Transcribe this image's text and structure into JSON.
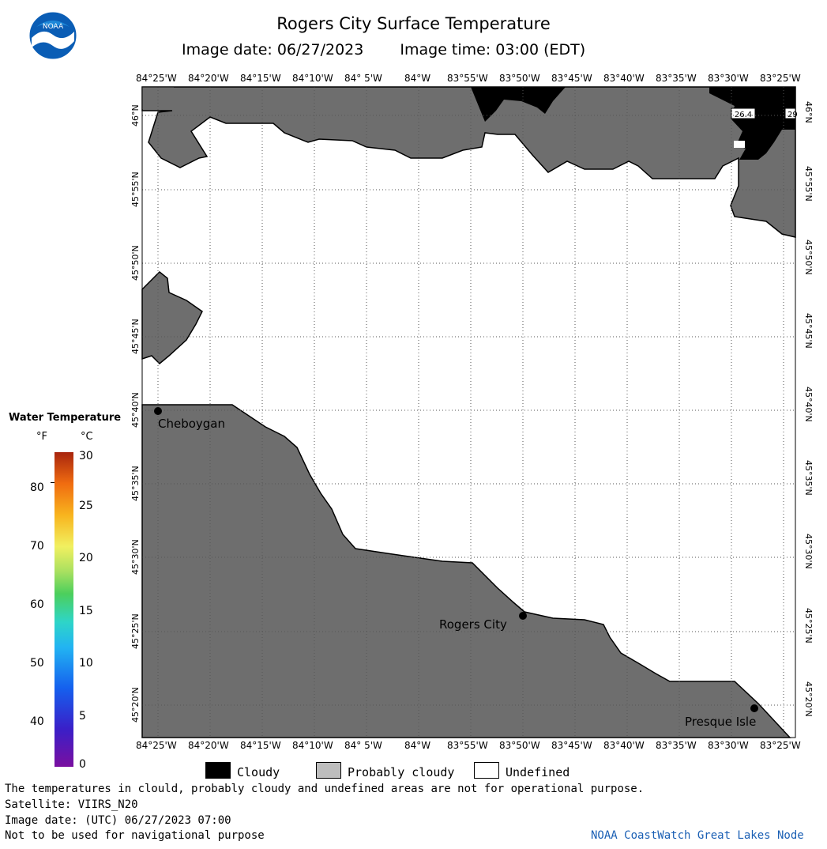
{
  "header": {
    "title": "Rogers City Surface Temperature",
    "image_date": "Image date: 06/27/2023",
    "image_time": "Image time: 03:00 (EDT)"
  },
  "map": {
    "lon_ticks": [
      "84°25'W",
      "84°20'W",
      "84°15'W",
      "84°10'W",
      "84° 5'W",
      "84°W",
      "83°55'W",
      "83°50'W",
      "83°45'W",
      "83°40'W",
      "83°35'W",
      "83°30'W",
      "83°25'W"
    ],
    "lat_ticks": [
      "46°N",
      "45°55'N",
      "45°50'N",
      "45°45'N",
      "45°40'N",
      "45°35'N",
      "45°30'N",
      "45°25'N",
      "45°20'N"
    ],
    "cities": [
      "Cheboygan",
      "Rogers City",
      "Presque Isle"
    ],
    "cloud_readouts": [
      "26.4",
      "29"
    ],
    "colors": {
      "land": "#6e6e6e",
      "cloud": "#000000",
      "water_undefined": "#ffffff"
    }
  },
  "colorbar": {
    "title": "Water Temperature",
    "unit_f": "°F",
    "unit_c": "°C",
    "f_labels": [
      "80",
      "70",
      "60",
      "50",
      "40"
    ],
    "c_labels": [
      "30",
      "25",
      "20",
      "15",
      "10",
      "5",
      "0"
    ],
    "range_c": [
      0,
      30
    ]
  },
  "legend": {
    "cloudy": "Cloudy",
    "probably_cloudy": "Probably cloudy",
    "undefined": "Undefined"
  },
  "notes": {
    "line1": "The temperatures in clould, probably cloudy and undefined areas are not for operational purpose.",
    "satellite": "Satellite: VIIRS_N20",
    "utc": "Image date: (UTC) 06/27/2023  07:00",
    "nav": "Not to be used for navigational purpose",
    "credit": "NOAA CoastWatch Great Lakes Node"
  }
}
